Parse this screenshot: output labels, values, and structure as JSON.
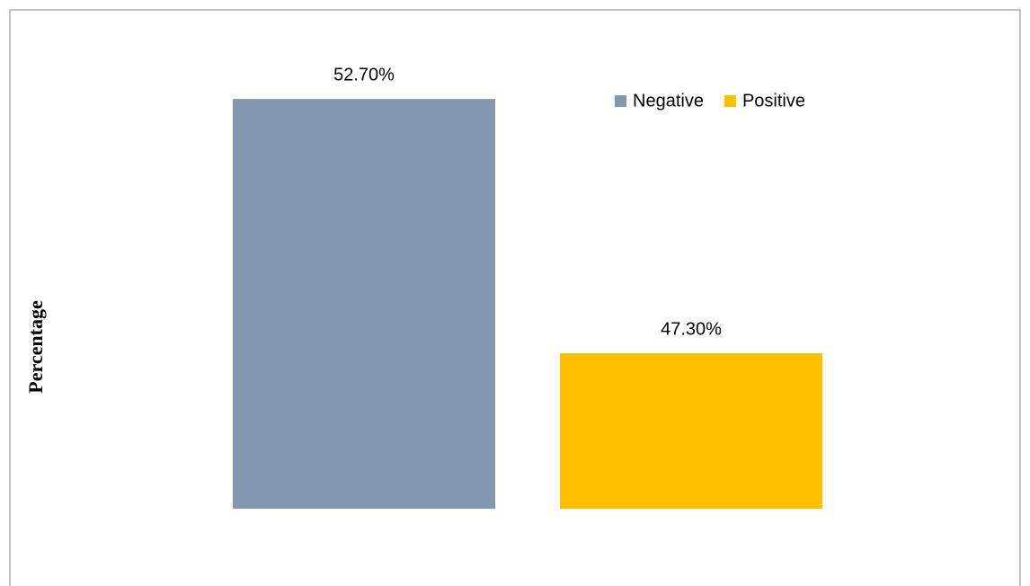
{
  "chart_data": {
    "type": "bar",
    "ylabel": "Percentage",
    "categories": [
      null
    ],
    "series": [
      {
        "name": "Negative",
        "color": "#8497b0",
        "values": [
          52.7
        ],
        "value_labels": [
          "52.70%"
        ]
      },
      {
        "name": "Positive",
        "color": "#ffc000",
        "values": [
          47.3
        ],
        "value_labels": [
          "47.30%"
        ]
      }
    ],
    "ylim": [
      44,
      54
    ],
    "legend": "top-right"
  }
}
